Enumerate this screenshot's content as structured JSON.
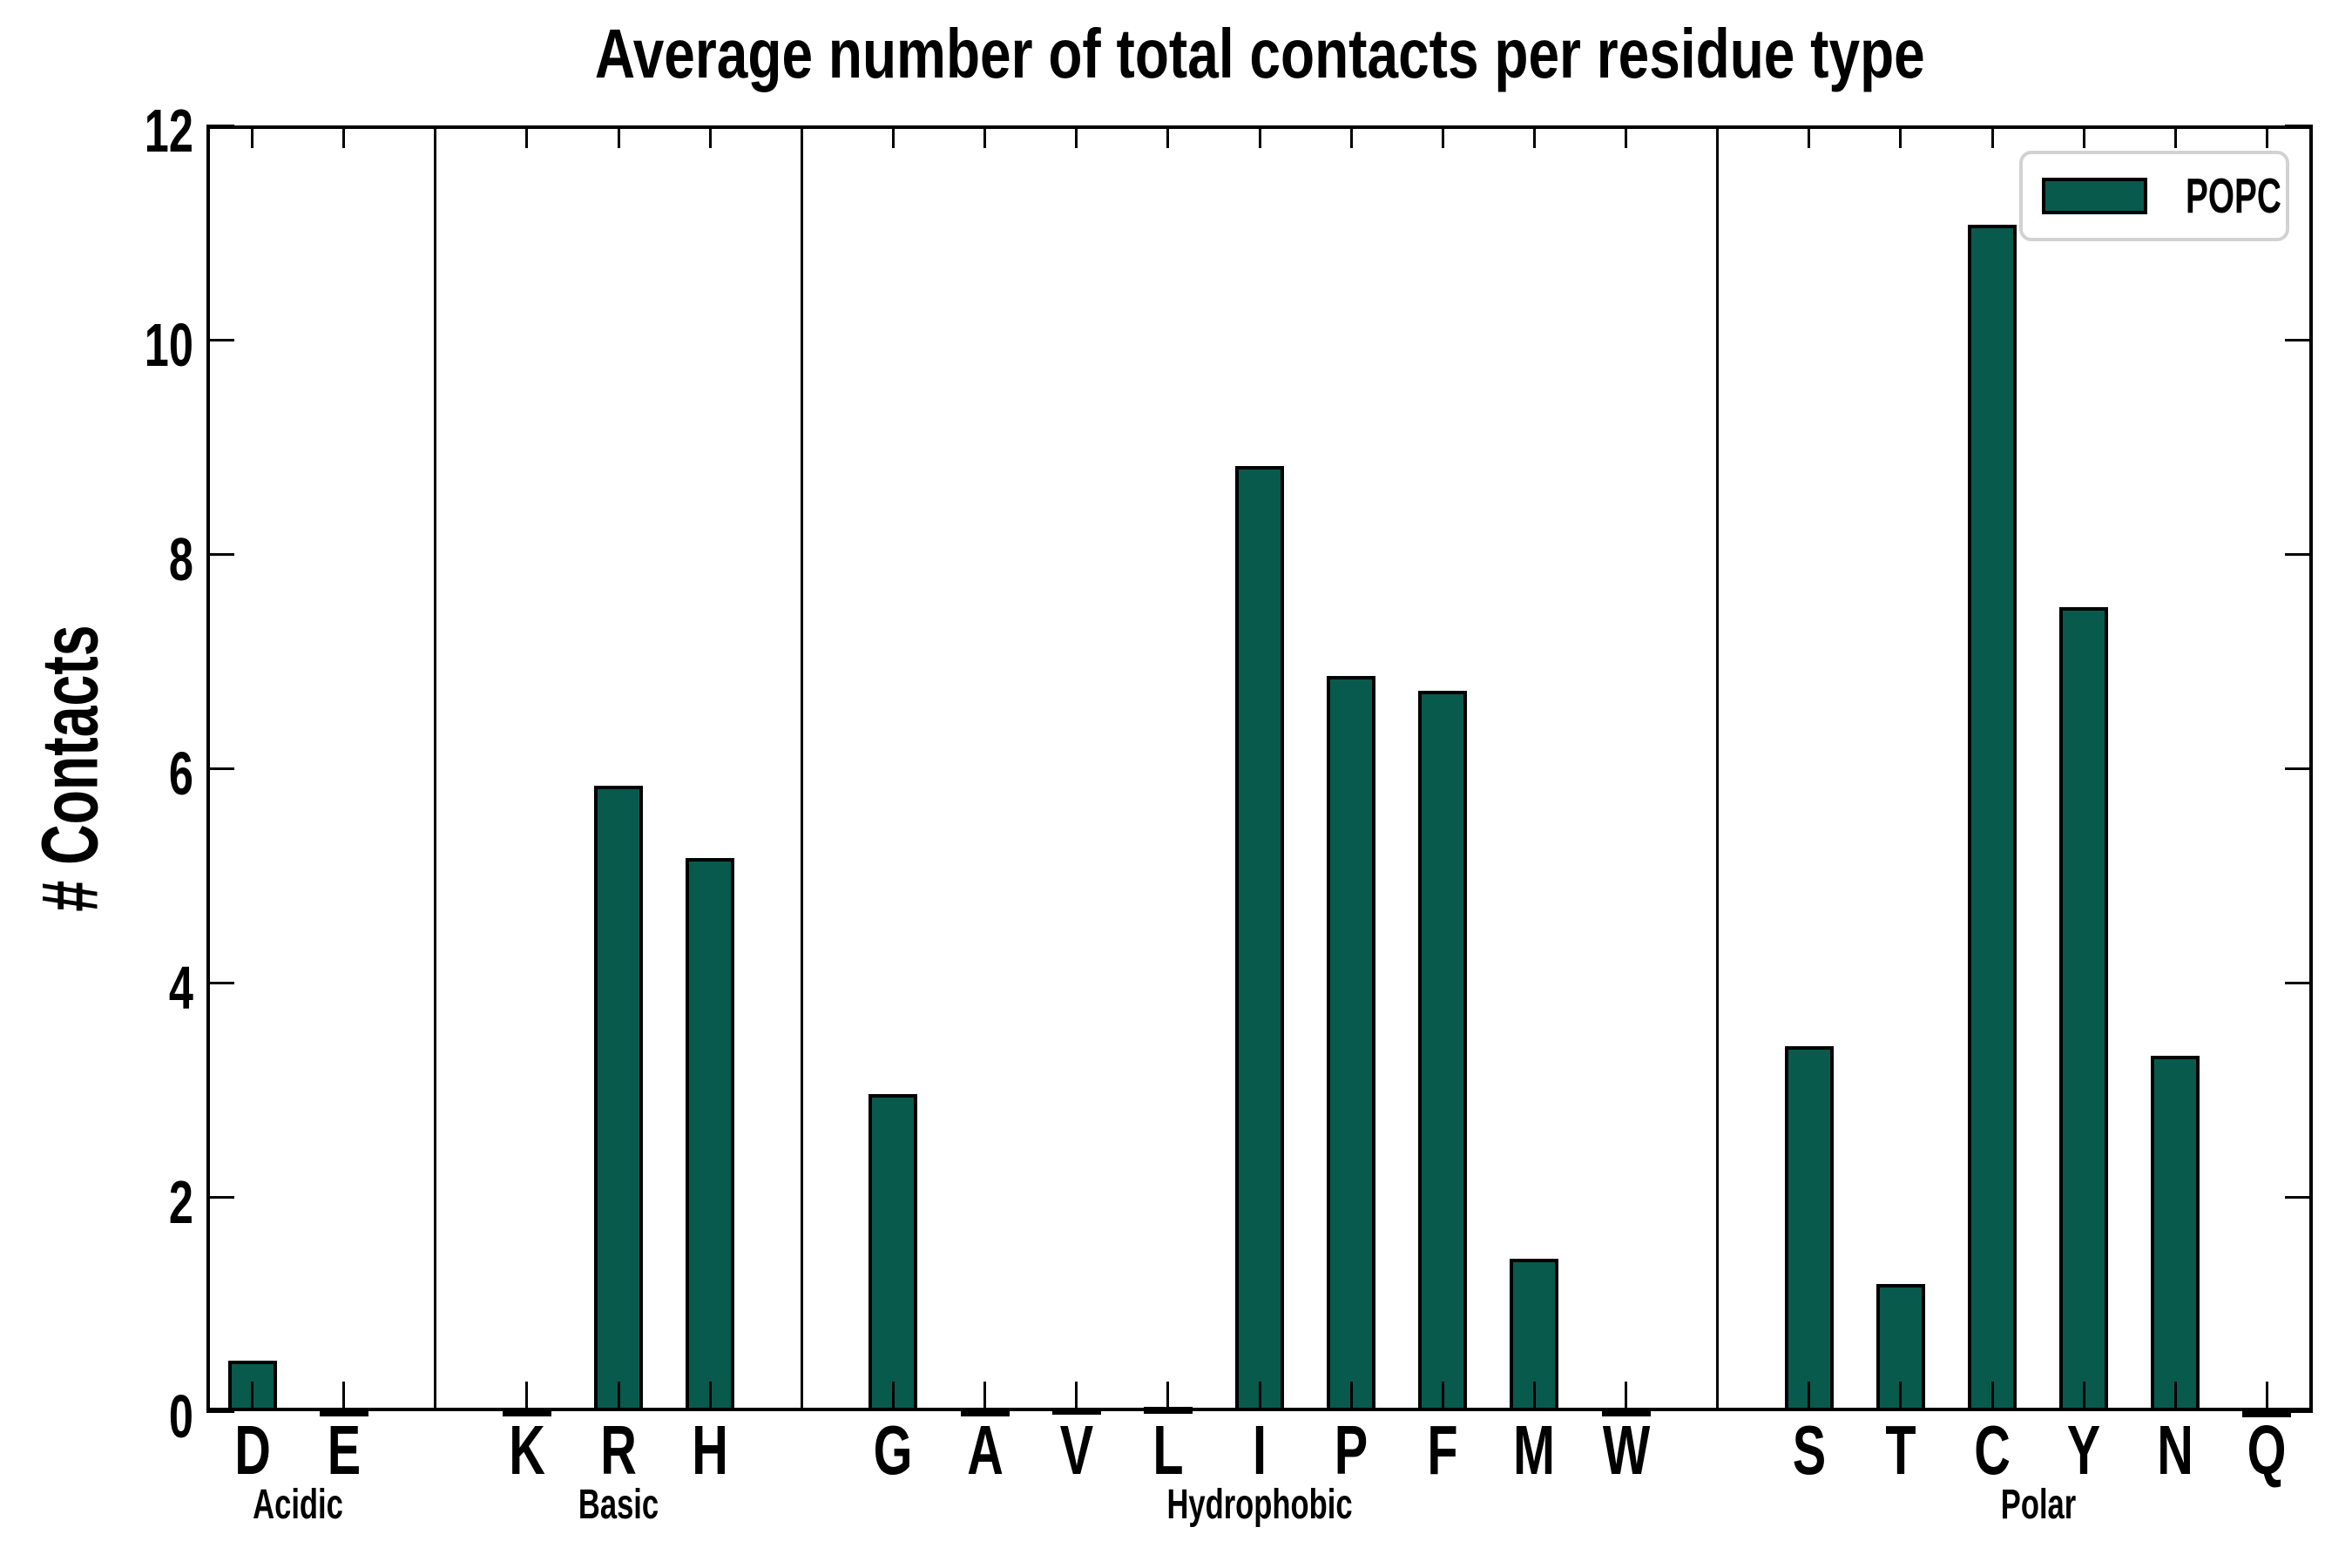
{
  "chart_data": {
    "type": "bar",
    "title": "Average number of total contacts per residue type",
    "xlabel": "",
    "ylabel": "# Contacts",
    "ylim": [
      0,
      12
    ],
    "yticks": [
      0,
      2,
      4,
      6,
      8,
      10,
      12
    ],
    "grid": false,
    "legend": {
      "label": "POPC",
      "position": "upper right"
    },
    "colors": {
      "bar_fill": "#085a4d",
      "bar_edge": "#000000",
      "axis": "#000000",
      "legend_border": "#d2d2d2",
      "background": "#ffffff"
    },
    "groups": [
      {
        "name": "Acidic",
        "categories": [
          "D",
          "E"
        ],
        "values": [
          0.47,
          0.02
        ]
      },
      {
        "name": "Basic",
        "categories": [
          "K",
          "R",
          "H"
        ],
        "values": [
          0.02,
          5.84,
          5.16
        ]
      },
      {
        "name": "Hydrophobic",
        "categories": [
          "G",
          "A",
          "V",
          "L",
          "I",
          "P",
          "F",
          "M",
          "W"
        ],
        "values": [
          2.96,
          0.02,
          0.03,
          0.04,
          8.82,
          6.86,
          6.72,
          1.42,
          0.02
        ]
      },
      {
        "name": "Polar",
        "categories": [
          "S",
          "T",
          "C",
          "Y",
          "N",
          "Q"
        ],
        "values": [
          3.41,
          1.19,
          11.07,
          7.5,
          3.32,
          0.01
        ]
      }
    ],
    "series": [
      {
        "name": "POPC",
        "values": [
          0.47,
          0.02,
          0.02,
          5.84,
          5.16,
          2.96,
          0.02,
          0.03,
          0.04,
          8.82,
          6.86,
          6.72,
          1.42,
          0.02,
          3.41,
          1.19,
          11.07,
          7.5,
          3.32,
          0.01
        ]
      }
    ]
  }
}
